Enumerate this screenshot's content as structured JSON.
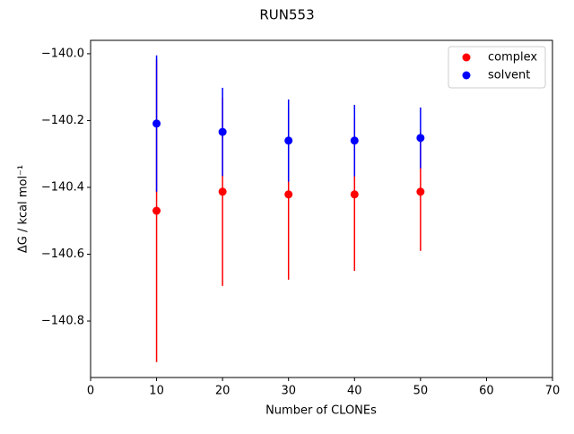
{
  "chart_data": {
    "type": "errorbar-scatter",
    "title": "RUN553",
    "x_label": "Number of CLONEs",
    "y_label": "ΔG / kcal mol⁻¹",
    "x": [
      10,
      20,
      30,
      40,
      50
    ],
    "series": [
      {
        "name": "complex",
        "color": "#ff0000",
        "values": [
          -140.47,
          -140.413,
          -140.421,
          -140.421,
          -140.413
        ],
        "errors": [
          0.453,
          0.282,
          0.255,
          0.229,
          0.177
        ]
      },
      {
        "name": "solvent",
        "color": "#0000ff",
        "values": [
          -140.209,
          -140.234,
          -140.26,
          -140.26,
          -140.252
        ],
        "errors": [
          0.204,
          0.132,
          0.123,
          0.107,
          0.091
        ]
      }
    ],
    "xlim": [
      0,
      70
    ],
    "xticks": [
      0,
      10,
      20,
      30,
      40,
      50,
      60,
      70
    ],
    "ylim": [
      -140.969,
      -139.96
    ],
    "yticks": [
      {
        "value": -140.8,
        "label": "−140.8"
      },
      {
        "value": -140.6,
        "label": "−140.6"
      },
      {
        "value": -140.4,
        "label": "−140.4"
      },
      {
        "value": -140.2,
        "label": "−140.2"
      },
      {
        "value": -140.0,
        "label": "−140.0"
      }
    ],
    "grid": false,
    "legend": "upper right"
  }
}
